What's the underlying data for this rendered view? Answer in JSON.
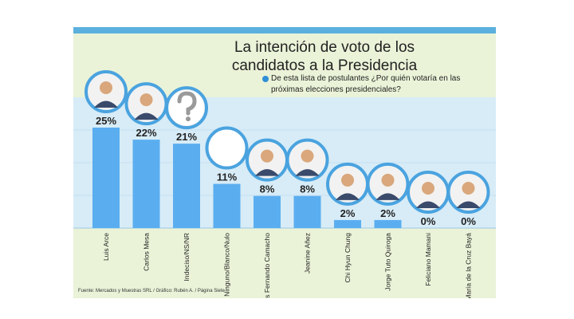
{
  "title": {
    "line1": "La intención de voto de los",
    "line2": "candidatos a la Presidencia"
  },
  "question": "De esta lista de postulantes ¿Por quién votaría en las próximas elecciones presidenciales?",
  "source": "Fuente: Mercados y Muestras SRL / Gráfico: Rubén A. / Página Siete",
  "colors": {
    "bar": "#5aaef0",
    "panel": "#d7ecf7",
    "background": "#eaf3d8",
    "accent": "#2f8fd6",
    "portrait_ring": "#4aa3df"
  },
  "chart_data": {
    "type": "bar",
    "categories": [
      "Luis Arce",
      "Carlos Mesa",
      "Indeciso/NS/NR",
      "Ninguno/Blanco/Nulo",
      "Luis Fernando Camacho",
      "Jeanine Añez",
      "Chi Hyun Chung",
      "Jorge Tuto Quiroga",
      "Feliciano Mamani",
      "María de la Cruz Bayá"
    ],
    "values": [
      25,
      22,
      21,
      11,
      8,
      8,
      2,
      2,
      0,
      0
    ],
    "value_labels": [
      "25%",
      "22%",
      "21%",
      "11%",
      "8%",
      "8%",
      "2%",
      "2%",
      "0%",
      "0%"
    ],
    "ylim": [
      0,
      25
    ],
    "grid": true,
    "legend": "none"
  }
}
